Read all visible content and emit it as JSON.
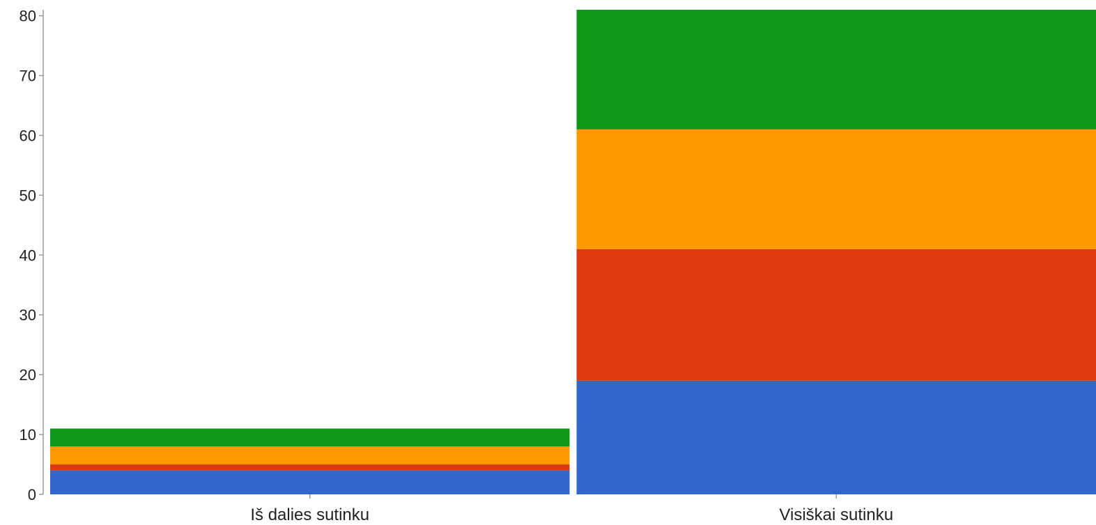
{
  "chart_data": {
    "type": "bar",
    "stacked": true,
    "categories": [
      "Iš dalies sutinku",
      "Visiškai sutinku"
    ],
    "series": [
      {
        "color": "#3366cc",
        "values": [
          4,
          19
        ]
      },
      {
        "color": "#dc3912",
        "values": [
          1,
          22
        ]
      },
      {
        "color": "#ff9900",
        "values": [
          3,
          20
        ]
      },
      {
        "color": "#109618",
        "values": [
          3,
          20
        ]
      }
    ],
    "title": "",
    "xlabel": "",
    "ylabel": "",
    "ylim": [
      0,
      81
    ],
    "yticks": [
      0,
      10,
      20,
      30,
      40,
      50,
      60,
      70,
      80
    ],
    "grid": false,
    "legend": "none"
  }
}
